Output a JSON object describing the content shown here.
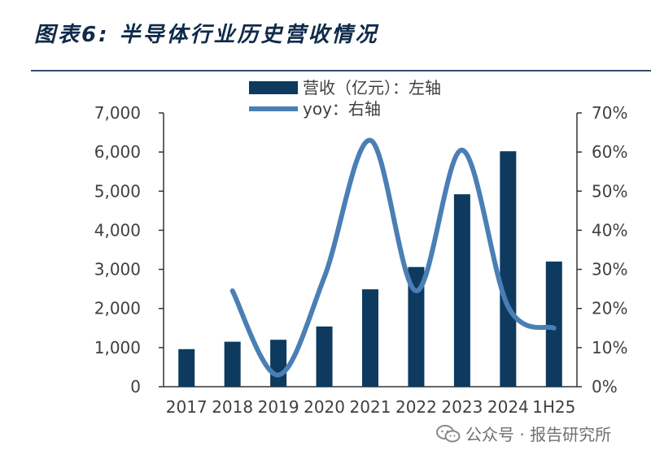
{
  "header": {
    "title": "图表6: 半导体行业历史营收情况"
  },
  "watermark": {
    "text": "公众号 · 报告研究所"
  },
  "chart_data": {
    "type": "bar",
    "categories": [
      "2017",
      "2018",
      "2019",
      "2020",
      "2021",
      "2022",
      "2023",
      "2024",
      "1H25"
    ],
    "series": [
      {
        "name": "营收（亿元）：左轴",
        "type": "bar",
        "axis": "left",
        "color": "#0d3a5e",
        "values": [
          960,
          1150,
          1200,
          1540,
          2490,
          3060,
          4920,
          6020,
          3200
        ]
      },
      {
        "name": "yoy：右轴",
        "type": "line",
        "axis": "right",
        "color": "#4a7fb5",
        "values": [
          null,
          24.5,
          3,
          28,
          63,
          24.5,
          60.5,
          20.5,
          15
        ]
      }
    ],
    "yleft": {
      "ticks": [
        "0",
        "1,000",
        "2,000",
        "3,000",
        "4,000",
        "5,000",
        "6,000",
        "7,000"
      ],
      "range": [
        0,
        7000
      ]
    },
    "yright": {
      "ticks": [
        "0%",
        "10%",
        "20%",
        "30%",
        "40%",
        "50%",
        "60%",
        "70%"
      ],
      "range": [
        0,
        70
      ]
    },
    "legend_position": "top-center",
    "grid": false
  }
}
